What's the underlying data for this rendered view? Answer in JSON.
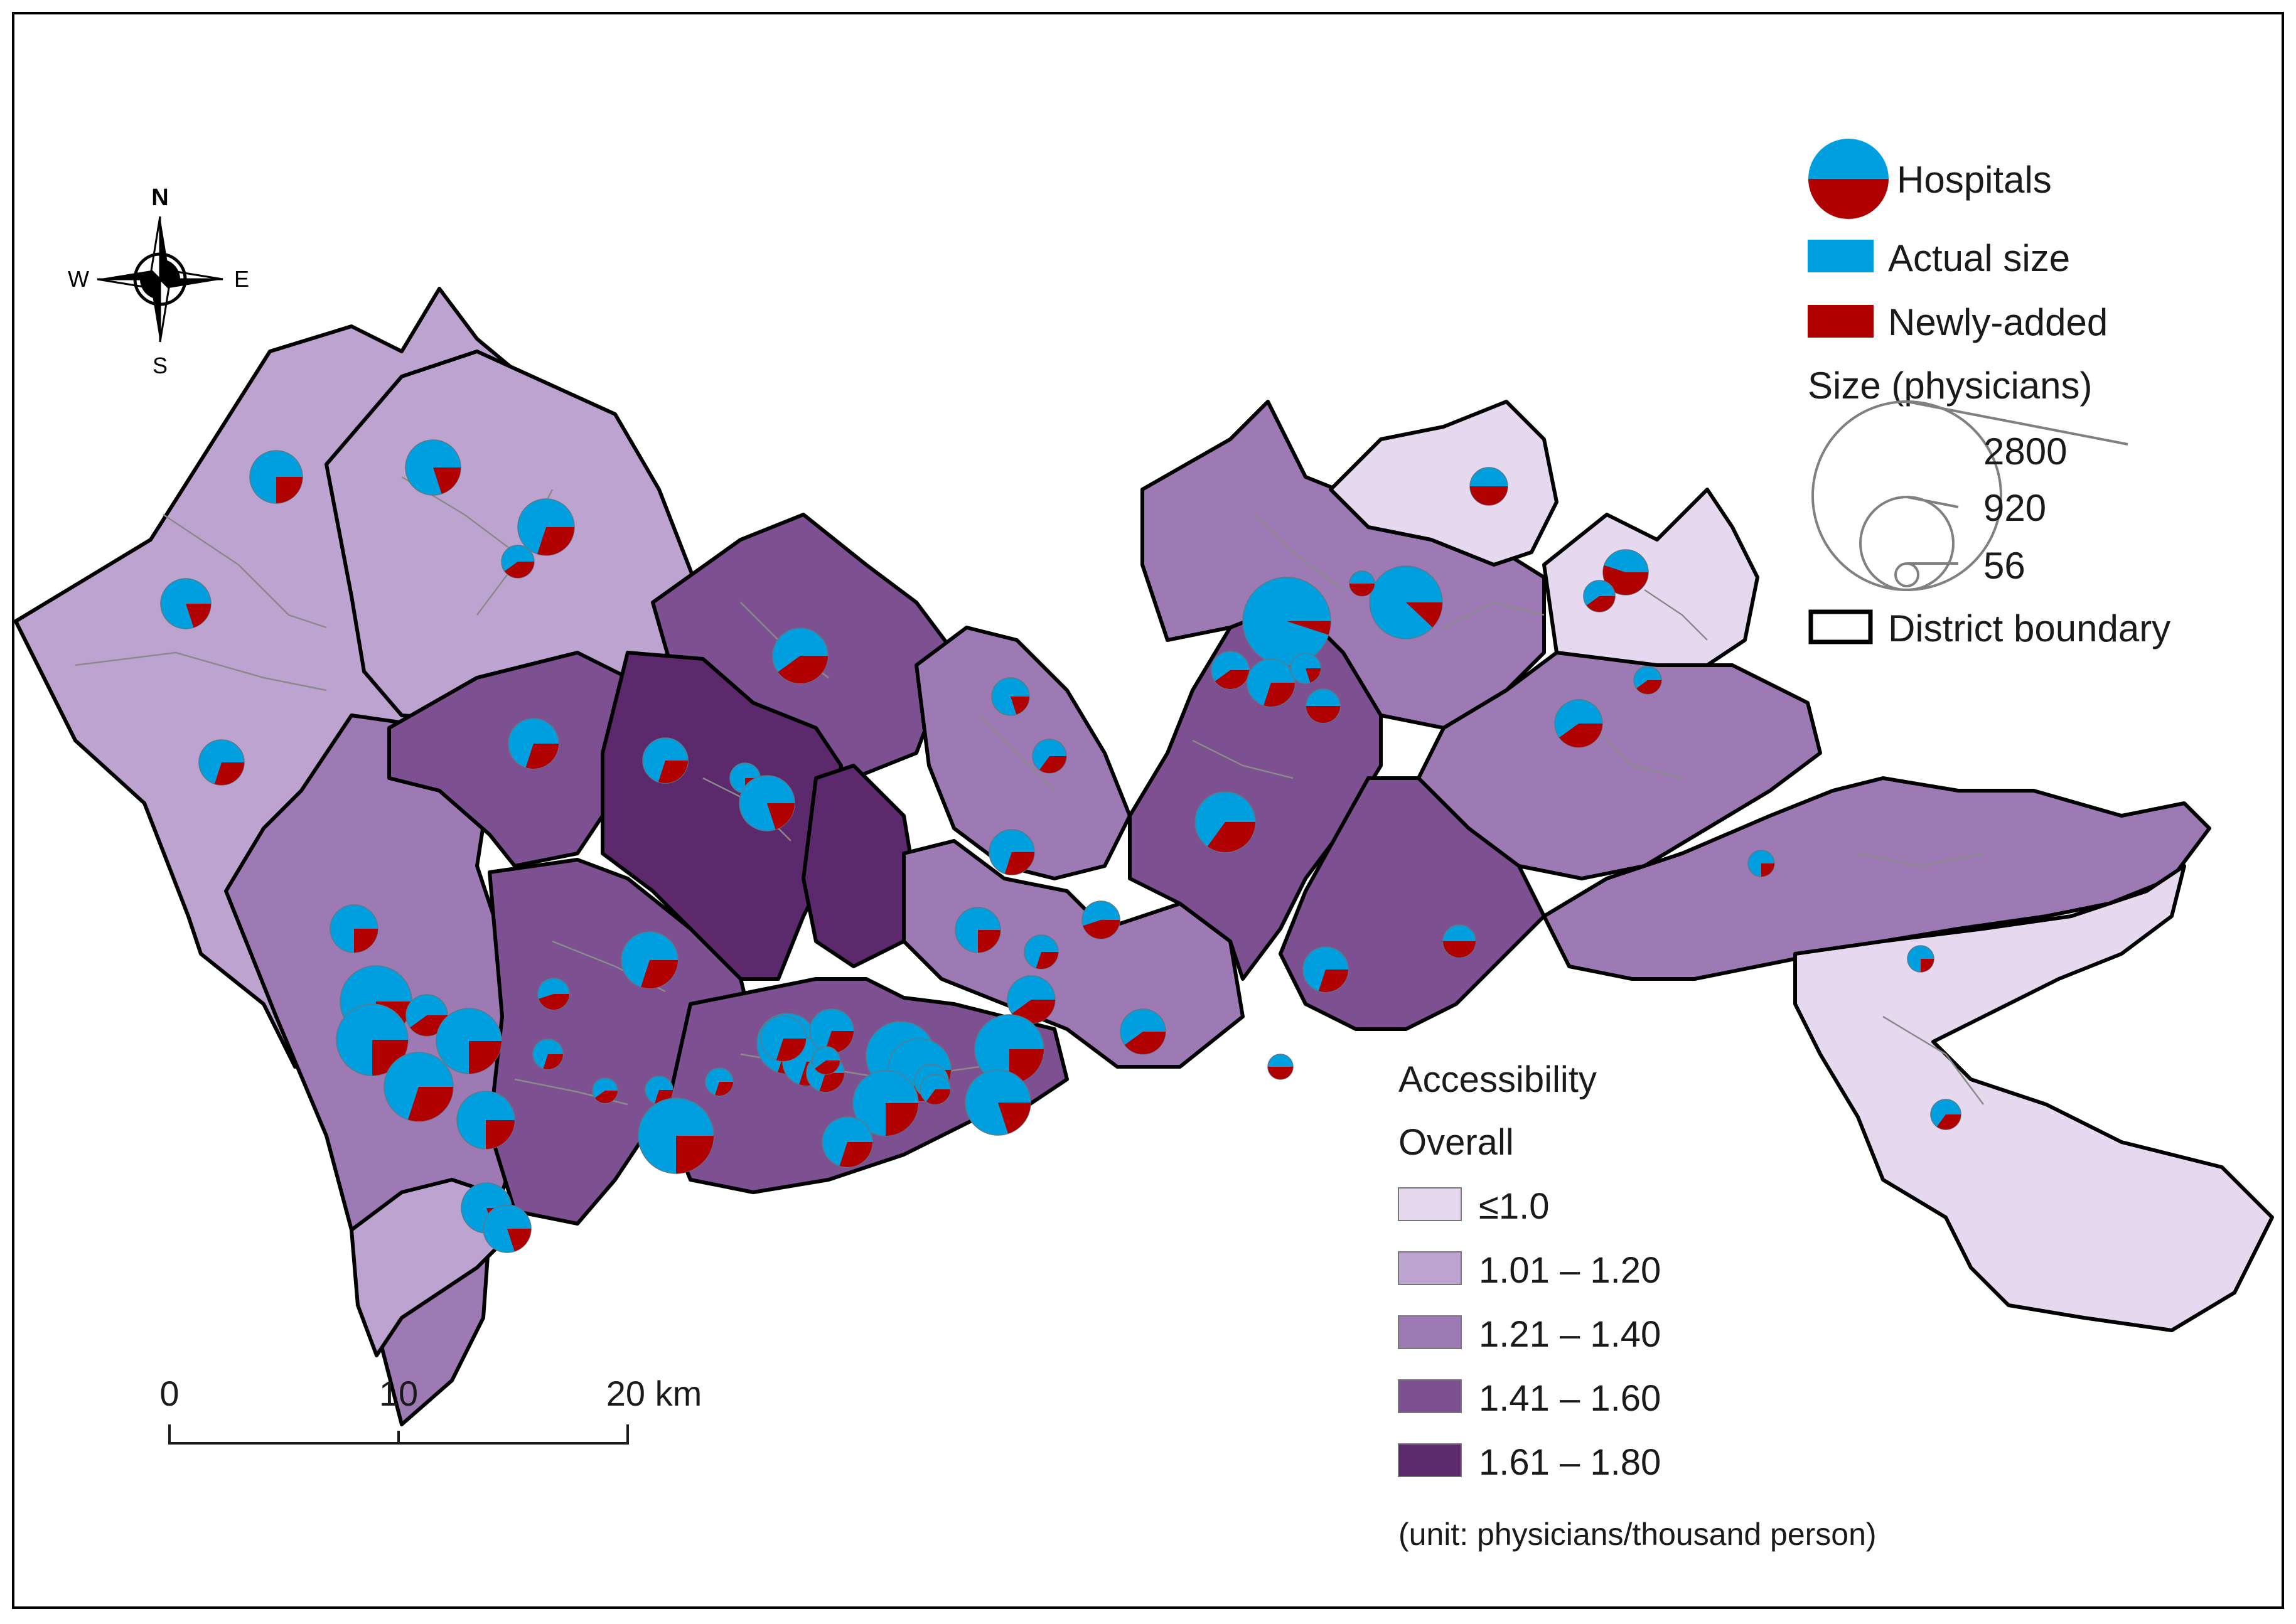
{
  "colors": {
    "actual": "#00a0e0",
    "newly_added": "#b00000",
    "class_1": "#e6d8ef",
    "class_2": "#bda3d0",
    "class_3": "#9d7ab4",
    "class_4": "#7d5191",
    "class_5": "#5c2a6c",
    "boundary": "#000000",
    "subdistrict_line": "#8a8a8a",
    "frame": "#000000"
  },
  "compass": {
    "icon": "compass-rose-icon",
    "north": "N",
    "south": "S",
    "east": "E",
    "west": "W"
  },
  "legend": {
    "hospitals_label": "Hospitals",
    "actual_size_label": "Actual size",
    "newly_added_label": "Newly-added",
    "size_title": "Size (physicians)",
    "size_values": [
      "2800",
      "920",
      "56"
    ],
    "district_boundary_label": "District boundary"
  },
  "accessibility_legend": {
    "title": "Accessibility",
    "subtitle": "Overall",
    "classes": [
      "≤1.0",
      "1.01 – 1.20",
      "1.21 – 1.40",
      "1.41 – 1.60",
      "1.61 – 1.80"
    ],
    "unit_note": "(unit: physicians/thousand person)"
  },
  "scale_bar": {
    "labels": [
      "0",
      "10",
      "20 km"
    ]
  }
}
